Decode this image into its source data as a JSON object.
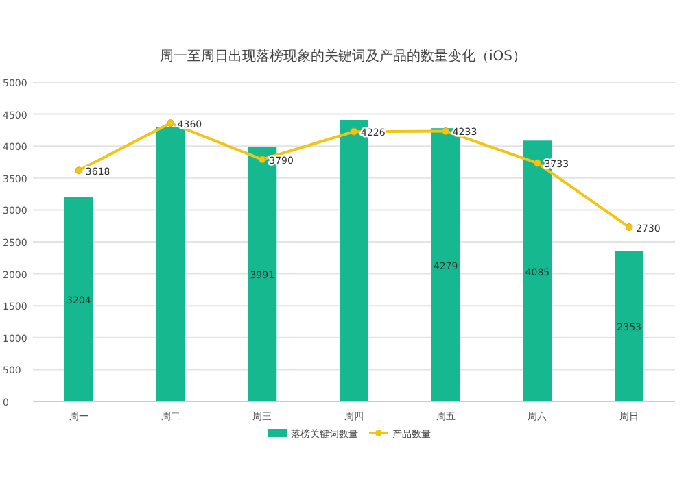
{
  "chart_data": {
    "type": "bar",
    "title": "周一至周日出现落榜现象的关键词及产品的数量变化（iOS）",
    "categories": [
      "周一",
      "周二",
      "周三",
      "周四",
      "周五",
      "周六",
      "周日"
    ],
    "series": [
      {
        "name": "落榜关键词数量",
        "color": "#16b98f",
        "values": [
          3204,
          4300,
          3991,
          4410,
          4279,
          4085,
          2353
        ],
        "value_labels": [
          "3204",
          null,
          "3991",
          null,
          "4279",
          "4085",
          "2353"
        ]
      },
      {
        "name": "产品数量",
        "type": "line",
        "color": "#f2c417",
        "marker": "circle",
        "values": [
          3618,
          4360,
          3790,
          4226,
          4233,
          3733,
          2730
        ],
        "value_labels": [
          "3618",
          "4360",
          "3790",
          "4226",
          "4233",
          "3733",
          "2730"
        ]
      }
    ],
    "ylim": [
      0,
      5000
    ],
    "yticks": [
      0,
      500,
      1000,
      1500,
      2000,
      2500,
      3000,
      3500,
      4000,
      4500,
      5000
    ],
    "grid": "y",
    "legend": "bottom"
  }
}
